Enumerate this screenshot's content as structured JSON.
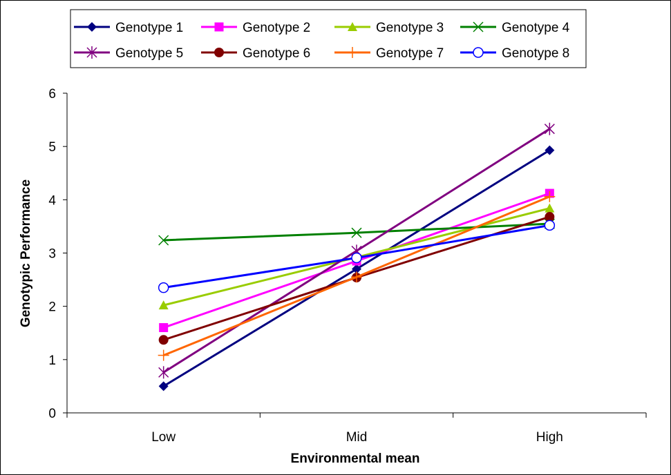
{
  "chart_data": {
    "type": "line",
    "categories": [
      "Low",
      "Mid",
      "High"
    ],
    "xlabel": "Environmental mean",
    "ylabel": "Genotypic Performance",
    "ylim": [
      0,
      6
    ],
    "yticks": [
      "0",
      "1",
      "2",
      "3",
      "4",
      "5",
      "6"
    ],
    "grid": false,
    "legend_position": "top",
    "series": [
      {
        "name": "Genotype 1",
        "values": [
          0.5,
          2.7,
          4.93
        ],
        "color": "#000080",
        "marker": "diamond"
      },
      {
        "name": "Genotype 2",
        "values": [
          1.6,
          2.85,
          4.12
        ],
        "color": "#ff00ff",
        "marker": "square"
      },
      {
        "name": "Genotype 3",
        "values": [
          2.02,
          2.92,
          3.84
        ],
        "color": "#99cc00",
        "marker": "triangle"
      },
      {
        "name": "Genotype 4",
        "values": [
          3.24,
          3.38,
          3.55
        ],
        "color": "#008000",
        "marker": "x"
      },
      {
        "name": "Genotype 5",
        "values": [
          0.76,
          3.04,
          5.33
        ],
        "color": "#800080",
        "marker": "star"
      },
      {
        "name": "Genotype 6",
        "values": [
          1.37,
          2.54,
          3.68
        ],
        "color": "#800000",
        "marker": "circle"
      },
      {
        "name": "Genotype 7",
        "values": [
          1.08,
          2.55,
          4.06
        ],
        "color": "#ff6600",
        "marker": "plus"
      },
      {
        "name": "Genotype 8",
        "values": [
          2.35,
          2.91,
          3.52
        ],
        "color": "#0000ff",
        "marker": "open-circle"
      }
    ]
  }
}
